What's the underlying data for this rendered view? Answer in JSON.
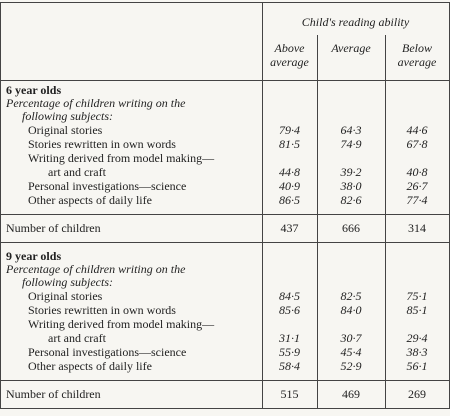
{
  "header": {
    "group": "Child's reading ability",
    "columns": [
      [
        "Above",
        "average"
      ],
      [
        "Average"
      ],
      [
        "Below",
        "average"
      ]
    ]
  },
  "sections": [
    {
      "title": "6 year olds",
      "subtitle": [
        "Percentage of children writing on the",
        "following subjects:"
      ],
      "rows": [
        {
          "label": [
            "Original stories"
          ],
          "values": [
            "79·4",
            "64·3",
            "44·6"
          ]
        },
        {
          "label": [
            "Stories rewritten in own words"
          ],
          "values": [
            "81·5",
            "74·9",
            "67·8"
          ]
        },
        {
          "label": [
            "Writing derived from model making—",
            "art and craft"
          ],
          "values": [
            "44·8",
            "39·2",
            "40·8"
          ]
        },
        {
          "label": [
            "Personal investigations—science"
          ],
          "values": [
            "40·9",
            "38·0",
            "26·7"
          ]
        },
        {
          "label": [
            "Other aspects of daily life"
          ],
          "values": [
            "86·5",
            "82·6",
            "77·4"
          ]
        }
      ],
      "count": {
        "label": "Number of children",
        "values": [
          "437",
          "666",
          "314"
        ]
      }
    },
    {
      "title": "9 year olds",
      "subtitle": [
        "Percentage of children writing on the",
        "following subjects:"
      ],
      "rows": [
        {
          "label": [
            "Original stories"
          ],
          "values": [
            "84·5",
            "82·5",
            "75·1"
          ]
        },
        {
          "label": [
            "Stories rewritten in own words"
          ],
          "values": [
            "85·6",
            "84·0",
            "85·1"
          ]
        },
        {
          "label": [
            "Writing derived from model making—",
            "art and craft"
          ],
          "values": [
            "31·1",
            "30·7",
            "29·4"
          ]
        },
        {
          "label": [
            "Personal investigations—science"
          ],
          "values": [
            "55·9",
            "45·4",
            "38·3"
          ]
        },
        {
          "label": [
            "Other aspects of daily life"
          ],
          "values": [
            "58·4",
            "52·9",
            "56·1"
          ]
        }
      ],
      "count": {
        "label": "Number of children",
        "values": [
          "515",
          "469",
          "269"
        ]
      }
    }
  ]
}
